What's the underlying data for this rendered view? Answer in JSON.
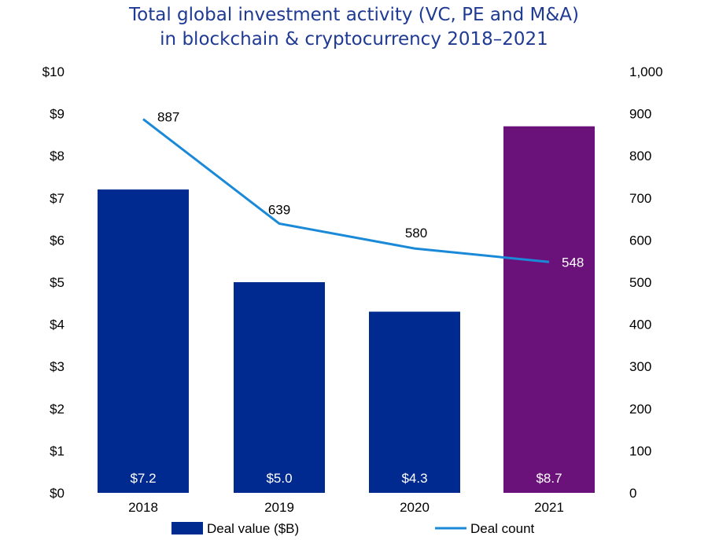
{
  "chart_data": {
    "type": "bar",
    "title_line1": "Total global investment activity (VC, PE and M&A)",
    "title_line2": "in blockchain & cryptocurrency 2018–2021",
    "categories": [
      "2018",
      "2019",
      "2020",
      "2021"
    ],
    "series": [
      {
        "name": "Deal value ($B)",
        "type": "bar",
        "axis": "left",
        "values": [
          7.2,
          5.0,
          4.3,
          8.7
        ],
        "labels": [
          "$7.2",
          "$5.0",
          "$4.3",
          "$8.7"
        ],
        "colors": [
          "#002a8f",
          "#002a8f",
          "#002a8f",
          "#6a127a"
        ]
      },
      {
        "name": "Deal count",
        "type": "line",
        "axis": "right",
        "values": [
          887,
          639,
          580,
          548
        ],
        "labels": [
          "887",
          "639",
          "580",
          "548"
        ],
        "color": "#1a8ad8"
      }
    ],
    "y_left": {
      "min": 0,
      "max": 10,
      "ticks": [
        "$0",
        "$1",
        "$2",
        "$3",
        "$4",
        "$5",
        "$6",
        "$7",
        "$8",
        "$9",
        "$10"
      ]
    },
    "y_right": {
      "min": 0,
      "max": 1000,
      "ticks": [
        "0",
        "100",
        "200",
        "300",
        "400",
        "500",
        "600",
        "700",
        "800",
        "900",
        "1,000"
      ]
    },
    "legend": {
      "position": "bottom",
      "items": [
        "Deal value ($B)",
        "Deal count"
      ]
    }
  }
}
